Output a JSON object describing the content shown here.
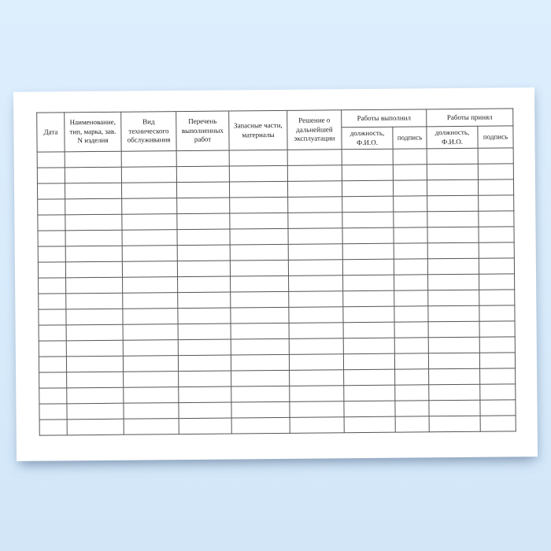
{
  "scene": {
    "background_top_color": "#ddeefd",
    "background_bottom_color": "#d2e6f8",
    "paper_color": "#ffffff",
    "table_border_color": "#555555"
  },
  "document": {
    "kind": "blank maintenance log table (Russian)",
    "table": {
      "headers": {
        "date": "Дата",
        "item_name": "Наименование, тип, марка, зав. N изделия",
        "maintenance_kind": "Вид технического обслуживания",
        "works_list": "Перечень выполненных работ",
        "spare_parts": "Запасные части, материалы",
        "decision": "Решение о дальнейшей эксплуатации",
        "works_performed_group": "Работы выполнил",
        "works_accepted_group": "Работы принял",
        "position_name": "должность, Ф.И.О.",
        "signature": "подпись"
      },
      "empty_body_rows": 18,
      "body_columns": 10
    }
  }
}
